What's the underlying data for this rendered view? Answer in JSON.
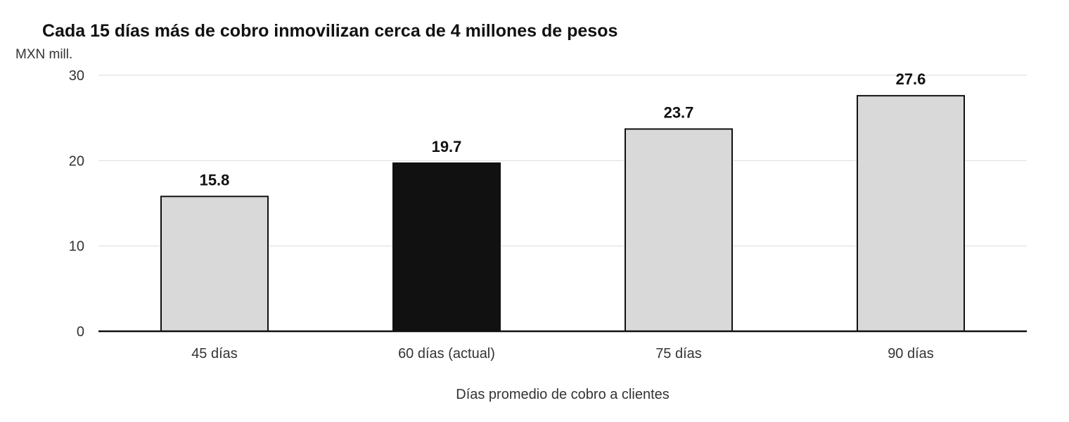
{
  "chart_data": {
    "type": "bar",
    "title": "Cada 15 días más de cobro inmovilizan cerca de 4 millones de pesos",
    "ylabel": "MXN mill.",
    "xlabel": "Días promedio de cobro a clientes",
    "categories": [
      "45 días",
      "60 días (actual)",
      "75 días",
      "90 días"
    ],
    "values": [
      15.8,
      19.7,
      23.7,
      27.6
    ],
    "value_labels": [
      "15.8",
      "19.7",
      "23.7",
      "27.6"
    ],
    "highlight_index": 1,
    "ylim": [
      0,
      30
    ],
    "yticks": [
      0,
      10,
      20,
      30
    ],
    "ytick_labels": [
      "0",
      "10",
      "20",
      "30"
    ],
    "grid": true,
    "colors": {
      "bar": "#d9d9d9",
      "bar_highlight": "#111111",
      "bar_border": "#111111",
      "grid": "#e6e6e6"
    }
  }
}
